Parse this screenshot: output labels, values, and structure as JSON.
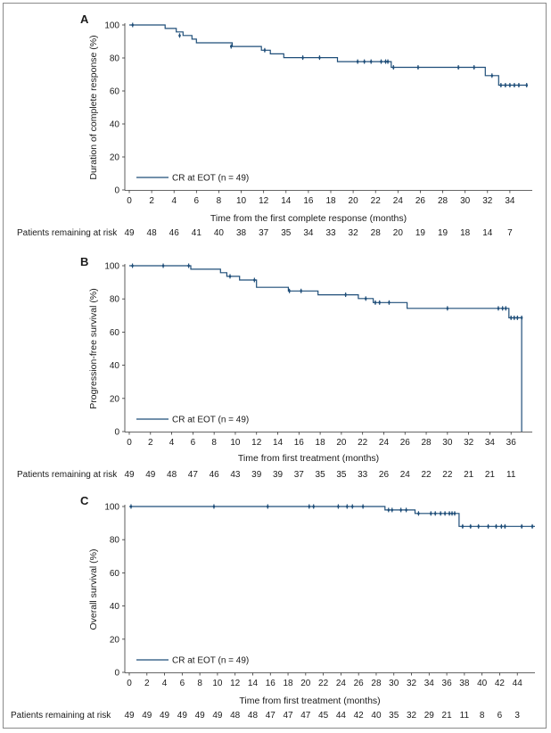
{
  "colors": {
    "curve": "#1f4e79",
    "axis": "#333333"
  },
  "chart_data": [
    {
      "type": "line",
      "panel_label": "A",
      "ylabel": "Duration of complete response (%)",
      "xlabel": "Time from the first complete response (months)",
      "ylim": [
        0,
        100
      ],
      "yticks": [
        0,
        20,
        40,
        60,
        80,
        100
      ],
      "xlim": [
        0,
        36
      ],
      "xticks": [
        0,
        2,
        4,
        6,
        8,
        10,
        12,
        14,
        16,
        18,
        20,
        22,
        24,
        26,
        28,
        30,
        32,
        34
      ],
      "legend_label": "CR at EOT (n = 49)",
      "legend_position": "lower-left",
      "series": [
        {
          "steps": [
            [
              0,
              100
            ],
            [
              3.2,
              97.9
            ],
            [
              4.2,
              95.8
            ],
            [
              4.8,
              93.6
            ],
            [
              5.6,
              91.4
            ],
            [
              6,
              89.2
            ],
            [
              9.2,
              87
            ],
            [
              11.8,
              84.7
            ],
            [
              12.6,
              82.5
            ],
            [
              13.8,
              80.2
            ],
            [
              18.6,
              77.8
            ],
            [
              23.4,
              74.3
            ],
            [
              31.8,
              69.3
            ],
            [
              33,
              63.5
            ],
            [
              35.6,
              63.5
            ]
          ],
          "censored": [
            [
              0.3,
              100
            ],
            [
              4.5,
              93.6
            ],
            [
              9.1,
              87
            ],
            [
              12.1,
              84.7
            ],
            [
              15.5,
              80.2
            ],
            [
              17,
              80.2
            ],
            [
              20.4,
              77.8
            ],
            [
              21,
              77.8
            ],
            [
              21.6,
              77.8
            ],
            [
              22.5,
              77.8
            ],
            [
              22.9,
              77.8
            ],
            [
              23.1,
              77.8
            ],
            [
              23.6,
              74.3
            ],
            [
              25.8,
              74.3
            ],
            [
              29.4,
              74.3
            ],
            [
              30.8,
              74.3
            ],
            [
              32.4,
              69.3
            ],
            [
              33.2,
              63.5
            ],
            [
              33.6,
              63.5
            ],
            [
              34,
              63.5
            ],
            [
              34.4,
              63.5
            ],
            [
              34.8,
              63.5
            ],
            [
              35.5,
              63.5
            ]
          ]
        }
      ],
      "risk_title": "Patients remaining at risk",
      "risk_values": [
        "49",
        "48",
        "46",
        "41",
        "40",
        "38",
        "37",
        "35",
        "34",
        "33",
        "32",
        "28",
        "20",
        "19",
        "19",
        "18",
        "14",
        "7"
      ]
    },
    {
      "type": "line",
      "panel_label": "B",
      "ylabel": "Progression-free survival (%)",
      "xlabel": "Time from first treatment (months)",
      "ylim": [
        0,
        100
      ],
      "yticks": [
        0,
        20,
        40,
        60,
        80,
        100
      ],
      "xlim": [
        0,
        38
      ],
      "xticks": [
        0,
        2,
        4,
        6,
        8,
        10,
        12,
        14,
        16,
        18,
        20,
        22,
        24,
        26,
        28,
        30,
        32,
        34,
        36
      ],
      "legend_label": "CR at EOT (n = 49)",
      "legend_position": "lower-left",
      "series": [
        {
          "steps": [
            [
              0,
              100
            ],
            [
              5.8,
              97.9
            ],
            [
              8.6,
              95.8
            ],
            [
              9.2,
              93.6
            ],
            [
              10.4,
              91.4
            ],
            [
              12,
              87
            ],
            [
              15,
              84.8
            ],
            [
              17.8,
              82.5
            ],
            [
              21.6,
              80.2
            ],
            [
              23,
              77.8
            ],
            [
              26.2,
              74.3
            ],
            [
              35.8,
              68.6
            ],
            [
              37,
              0
            ],
            [
              37,
              0
            ]
          ],
          "censored": [
            [
              0.3,
              100
            ],
            [
              3.2,
              100
            ],
            [
              5.6,
              100
            ],
            [
              9.5,
              93.6
            ],
            [
              11.8,
              91.4
            ],
            [
              15.1,
              84.8
            ],
            [
              16.2,
              84.8
            ],
            [
              20.4,
              82.5
            ],
            [
              22.3,
              80.2
            ],
            [
              23.2,
              77.8
            ],
            [
              23.6,
              77.8
            ],
            [
              24.5,
              77.8
            ],
            [
              30,
              74.3
            ],
            [
              34.8,
              74.3
            ],
            [
              35.2,
              74.3
            ],
            [
              35.5,
              74.3
            ],
            [
              36,
              68.6
            ],
            [
              36.3,
              68.6
            ],
            [
              36.6,
              68.6
            ],
            [
              37,
              68.6
            ]
          ]
        }
      ],
      "risk_title": "Patients remaining at risk",
      "risk_values": [
        "49",
        "49",
        "48",
        "47",
        "46",
        "43",
        "39",
        "39",
        "37",
        "35",
        "35",
        "33",
        "26",
        "24",
        "22",
        "22",
        "21",
        "21",
        "11"
      ]
    },
    {
      "type": "line",
      "panel_label": "C",
      "ylabel": "Overall survival (%)",
      "xlabel": "Time from first treatment (months)",
      "ylim": [
        0,
        100
      ],
      "yticks": [
        0,
        20,
        40,
        60,
        80,
        100
      ],
      "xlim": [
        0,
        46
      ],
      "xticks": [
        0,
        2,
        4,
        6,
        8,
        10,
        12,
        14,
        16,
        18,
        20,
        22,
        24,
        26,
        28,
        30,
        32,
        34,
        36,
        38,
        40,
        42,
        44
      ],
      "legend_label": "CR at EOT (n = 49)",
      "legend_position": "lower-left",
      "series": [
        {
          "steps": [
            [
              0,
              100
            ],
            [
              29,
              97.9
            ],
            [
              32.4,
              95.8
            ],
            [
              37.4,
              88
            ],
            [
              46,
              88
            ]
          ],
          "censored": [
            [
              0.2,
              100
            ],
            [
              9.6,
              100
            ],
            [
              15.7,
              100
            ],
            [
              20.4,
              100
            ],
            [
              20.9,
              100
            ],
            [
              23.7,
              100
            ],
            [
              24.7,
              100
            ],
            [
              25.3,
              100
            ],
            [
              26.5,
              100
            ],
            [
              29.4,
              97.9
            ],
            [
              29.8,
              97.9
            ],
            [
              30.8,
              97.9
            ],
            [
              31.4,
              97.9
            ],
            [
              32.8,
              95.8
            ],
            [
              34.2,
              95.8
            ],
            [
              34.7,
              95.8
            ],
            [
              35.3,
              95.8
            ],
            [
              35.8,
              95.8
            ],
            [
              36.3,
              95.8
            ],
            [
              36.6,
              95.8
            ],
            [
              36.9,
              95.8
            ],
            [
              37.8,
              88
            ],
            [
              38.7,
              88
            ],
            [
              39.6,
              88
            ],
            [
              40.7,
              88
            ],
            [
              41.6,
              88
            ],
            [
              42.2,
              88
            ],
            [
              42.6,
              88
            ],
            [
              44.5,
              88
            ],
            [
              45.7,
              88
            ]
          ]
        }
      ],
      "risk_title": "Patients remaining at risk",
      "risk_values": [
        "49",
        "49",
        "49",
        "49",
        "49",
        "49",
        "48",
        "48",
        "47",
        "47",
        "47",
        "45",
        "44",
        "42",
        "40",
        "35",
        "32",
        "29",
        "21",
        "11",
        "8",
        "6",
        "3"
      ]
    }
  ]
}
